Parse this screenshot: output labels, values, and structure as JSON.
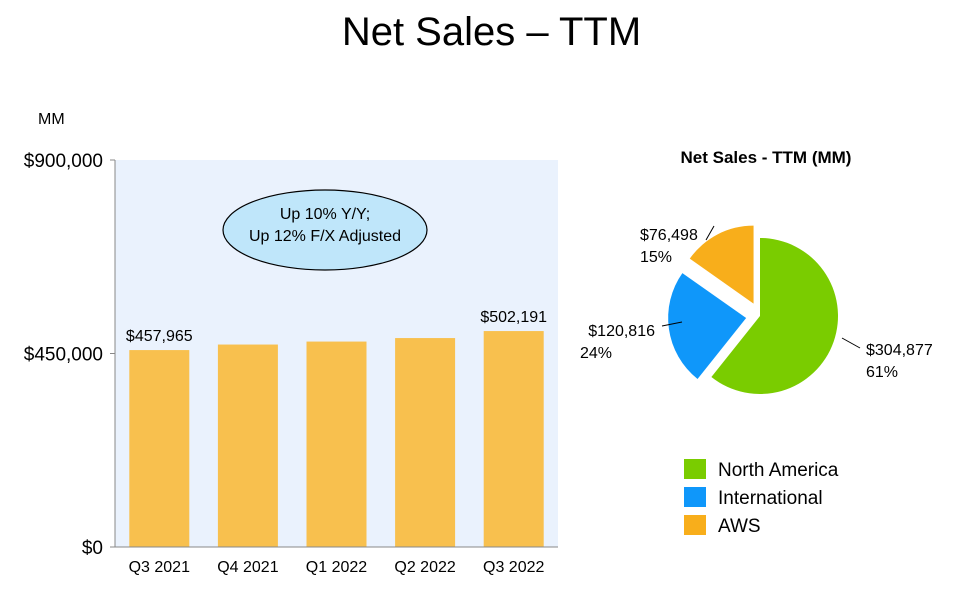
{
  "page": {
    "title": "Net Sales – TTM"
  },
  "chart_data": [
    {
      "type": "bar",
      "unit_label": "MM",
      "categories": [
        "Q3 2021",
        "Q4 2021",
        "Q1 2022",
        "Q2 2022",
        "Q3 2022"
      ],
      "values": [
        457965,
        470822,
        477748,
        485902,
        502191
      ],
      "data_labels": [
        "$457,965",
        "",
        "",
        "",
        "$502,191"
      ],
      "ylim": [
        0,
        900000
      ],
      "yticks": [
        {
          "value": 0,
          "label": "$0"
        },
        {
          "value": 450000,
          "label": "$450,000"
        },
        {
          "value": 900000,
          "label": "$900,000"
        }
      ],
      "annotation": [
        "Up 10% Y/Y;",
        "Up 12% F/X Adjusted"
      ],
      "colors": {
        "bar": "#F8C04E",
        "plot_bg": "#EAF2FD",
        "annotation_fill": "#BFE6FA"
      }
    },
    {
      "type": "pie",
      "title": "Net Sales - TTM (MM)",
      "slices": [
        {
          "name": "North America",
          "value": 304877,
          "value_label": "$304,877",
          "percent_label": "61%",
          "color": "#7ACC00",
          "exploded": false
        },
        {
          "name": "International",
          "value": 120816,
          "value_label": "$120,816",
          "percent_label": "24%",
          "color": "#0F97FA",
          "exploded": true
        },
        {
          "name": "AWS",
          "value": 76498,
          "value_label": "$76,498",
          "percent_label": "15%",
          "color": "#F8AE1B",
          "exploded": true
        }
      ],
      "legend_position": "bottom"
    }
  ]
}
